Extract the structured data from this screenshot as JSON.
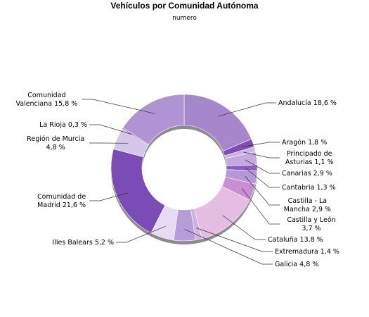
{
  "chart_data": {
    "type": "pie",
    "donut": true,
    "title": "Vehículos por Comunidad Autónoma",
    "subtitle": "numero",
    "legend": "none",
    "slices": [
      {
        "label": [
          "Andalucía 18,6 %"
        ],
        "value": 18.6,
        "color": "#a687cc"
      },
      {
        "label": [
          "Aragón 1,8 %"
        ],
        "value": 1.8,
        "color": "#7e4db8"
      },
      {
        "label": [
          "Principado de",
          "Asturias 1,1 %"
        ],
        "value": 1.1,
        "color": "#c9b4e2"
      },
      {
        "label": [
          "Canarias 2,9 %"
        ],
        "value": 2.9,
        "color": "#c3a9df"
      },
      {
        "label": [
          "Cantabria 1,3 %"
        ],
        "value": 1.3,
        "color": "#8e5bc1"
      },
      {
        "label": [
          "Castilla - La",
          "Mancha 2,9 %"
        ],
        "value": 2.9,
        "color": "#b698d8"
      },
      {
        "label": [
          "Castilla y León",
          "3,7 %"
        ],
        "value": 3.7,
        "color": "#c98fd3"
      },
      {
        "label": [
          "Cataluña 13,8 %"
        ],
        "value": 13.8,
        "color": "#e5bde3"
      },
      {
        "label": [
          "Extremadura 1,4 %"
        ],
        "value": 1.4,
        "color": "#cfb4e3"
      },
      {
        "label": [
          "Galicia 4,8 %"
        ],
        "value": 4.8,
        "color": "#b89bd9"
      },
      {
        "label": [
          "Illes Balears 5,2 %"
        ],
        "value": 5.2,
        "color": "#e6dbf2"
      },
      {
        "label": [
          "Comunidad de",
          "Madrid 21,6 %"
        ],
        "value": 21.6,
        "color": "#7b4bb6"
      },
      {
        "label": [
          "Región de Murcia",
          "4,8 %"
        ],
        "value": 4.8,
        "color": "#d5c6ea"
      },
      {
        "label": [
          "La Rioja 0,3 %"
        ],
        "value": 0.3,
        "color": "#9b74c6"
      },
      {
        "label": [
          "Comunidad",
          "Valenciana 15,8 %"
        ],
        "value": 15.8,
        "color": "#af93d3"
      }
    ]
  }
}
